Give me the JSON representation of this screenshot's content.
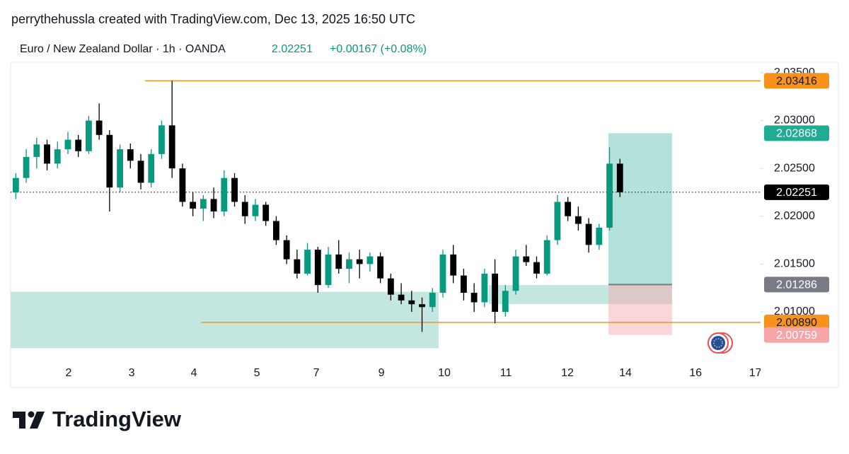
{
  "header": {
    "caption": "perrythehussla created with TradingView.com, Dec 13, 2025 16:50 UTC",
    "brand": "TradingView"
  },
  "chart_data": {
    "type": "candlestick",
    "title": "Euro / New Zealand Dollar · 1h · OANDA",
    "price_change": "+0.00167 (+0.08%)",
    "up_color": "#089981",
    "down_color": "#000000",
    "open": [
      2.0225,
      2.024,
      2.0262,
      2.0275,
      2.0255,
      2.027,
      2.028,
      2.0268,
      2.03,
      2.0285,
      2.023,
      2.027,
      2.0258,
      2.0235,
      2.0265,
      2.0295,
      2.025,
      2.0215,
      2.0208,
      2.0218,
      2.0205,
      2.024,
      2.0215,
      2.02,
      2.0212,
      2.0195,
      2.0175,
      2.0155,
      2.014,
      2.0165,
      2.0128,
      2.016,
      2.0145,
      2.0155,
      2.015,
      2.0158,
      2.0135,
      2.0118,
      2.0112,
      2.0108,
      2.0105,
      2.012,
      2.016,
      2.0138,
      2.012,
      2.011,
      2.014,
      2.01,
      2.0122,
      2.0158,
      2.0152,
      2.014,
      2.0175,
      2.0215,
      2.02,
      2.0192,
      2.017,
      2.0188,
      2.0255
    ],
    "high": [
      2.0245,
      2.027,
      2.0282,
      2.028,
      2.0278,
      2.0288,
      2.0285,
      2.0305,
      2.0318,
      2.029,
      2.0275,
      2.0276,
      2.0265,
      2.027,
      2.03,
      2.03416,
      2.0255,
      2.0225,
      2.0222,
      2.023,
      2.0248,
      2.0245,
      2.0222,
      2.0218,
      2.0215,
      2.02,
      2.018,
      2.0165,
      2.0172,
      2.0168,
      2.0168,
      2.0175,
      2.0162,
      2.0165,
      2.0162,
      2.0162,
      2.014,
      2.013,
      2.0122,
      2.0115,
      2.0125,
      2.0165,
      2.017,
      2.0145,
      2.013,
      2.0145,
      2.0155,
      2.0128,
      2.0165,
      2.017,
      2.0158,
      2.018,
      2.0222,
      2.022,
      2.021,
      2.0198,
      2.0192,
      2.0272,
      2.026
    ],
    "low": [
      2.0218,
      2.0235,
      2.025,
      2.0248,
      2.025,
      2.0265,
      2.0262,
      2.0265,
      2.028,
      2.0205,
      2.0225,
      2.025,
      2.0228,
      2.023,
      2.026,
      2.024,
      2.021,
      2.02,
      2.0195,
      2.0198,
      2.02,
      2.021,
      2.0192,
      2.0195,
      2.019,
      2.017,
      2.015,
      2.0135,
      2.0138,
      2.012,
      2.0125,
      2.014,
      2.013,
      2.0135,
      2.0142,
      2.013,
      2.0112,
      2.0108,
      2.01,
      2.0079,
      2.01,
      2.0115,
      2.013,
      2.0112,
      2.01,
      2.0105,
      2.0088,
      2.0095,
      2.0118,
      2.0148,
      2.0135,
      2.0138,
      2.017,
      2.0195,
      2.0185,
      2.0162,
      2.0165,
      2.0185,
      2.022
    ],
    "close": [
      2.024,
      2.0262,
      2.0275,
      2.0255,
      2.027,
      2.028,
      2.0268,
      2.03,
      2.0285,
      2.023,
      2.027,
      2.0258,
      2.0235,
      2.0265,
      2.0295,
      2.025,
      2.0215,
      2.0208,
      2.0218,
      2.0205,
      2.024,
      2.0215,
      2.02,
      2.0212,
      2.0195,
      2.0175,
      2.0155,
      2.014,
      2.0165,
      2.0128,
      2.016,
      2.0145,
      2.0155,
      2.015,
      2.0158,
      2.0135,
      2.0118,
      2.0112,
      2.0108,
      2.0105,
      2.012,
      2.016,
      2.0138,
      2.012,
      2.011,
      2.014,
      2.01,
      2.0122,
      2.0158,
      2.0152,
      2.014,
      2.0175,
      2.0215,
      2.02,
      2.0192,
      2.017,
      2.0188,
      2.0255,
      2.02251
    ],
    "xlim": [
      0,
      72
    ],
    "xticks": [
      {
        "value": 5.57,
        "label": "2"
      },
      {
        "value": 11.62,
        "label": "3"
      },
      {
        "value": 17.6,
        "label": "4"
      },
      {
        "value": 23.64,
        "label": "5"
      },
      {
        "value": 29.35,
        "label": "7"
      },
      {
        "value": 35.6,
        "label": "9"
      },
      {
        "value": 41.64,
        "label": "10"
      },
      {
        "value": 47.55,
        "label": "11"
      },
      {
        "value": 53.46,
        "label": "12"
      },
      {
        "value": 59.03,
        "label": "14"
      },
      {
        "value": 65.76,
        "label": "16"
      },
      {
        "value": 71.5,
        "label": "17"
      }
    ],
    "ylim": [
      2.0049,
      2.0361
    ],
    "yticks": [
      {
        "value": 2.035,
        "label": "2.03500"
      },
      {
        "value": 2.03,
        "label": "2.03000"
      },
      {
        "value": 2.025,
        "label": "2.02500"
      },
      {
        "value": 2.02,
        "label": "2.02000"
      },
      {
        "value": 2.015,
        "label": "2.01500"
      },
      {
        "value": 2.01,
        "label": "2.01000"
      }
    ],
    "hlines": [
      {
        "value": 2.03416,
        "color": "#f7931a",
        "from": 12.9
      },
      {
        "value": 2.0089,
        "label": "2.00890",
        "color": "#f7931a",
        "from": 18.3
      }
    ],
    "zones": [
      {
        "x": [
          0,
          41.1
        ],
        "top": 2.0121,
        "bottom": 2.0062,
        "color": "#b2dfd8"
      },
      {
        "x": [
          45.9,
          63.5
        ],
        "top": 2.01281,
        "bottom": 2.01082,
        "color": "#b2dfd8"
      }
    ],
    "position": {
      "x": [
        57.4,
        63.5
      ],
      "entry": 2.01286,
      "target": 2.02868,
      "stop": 2.00759,
      "entry_color": "#787b86",
      "target_color": "#22ab94",
      "stop_color": "#f7a5a8"
    }
  }
}
